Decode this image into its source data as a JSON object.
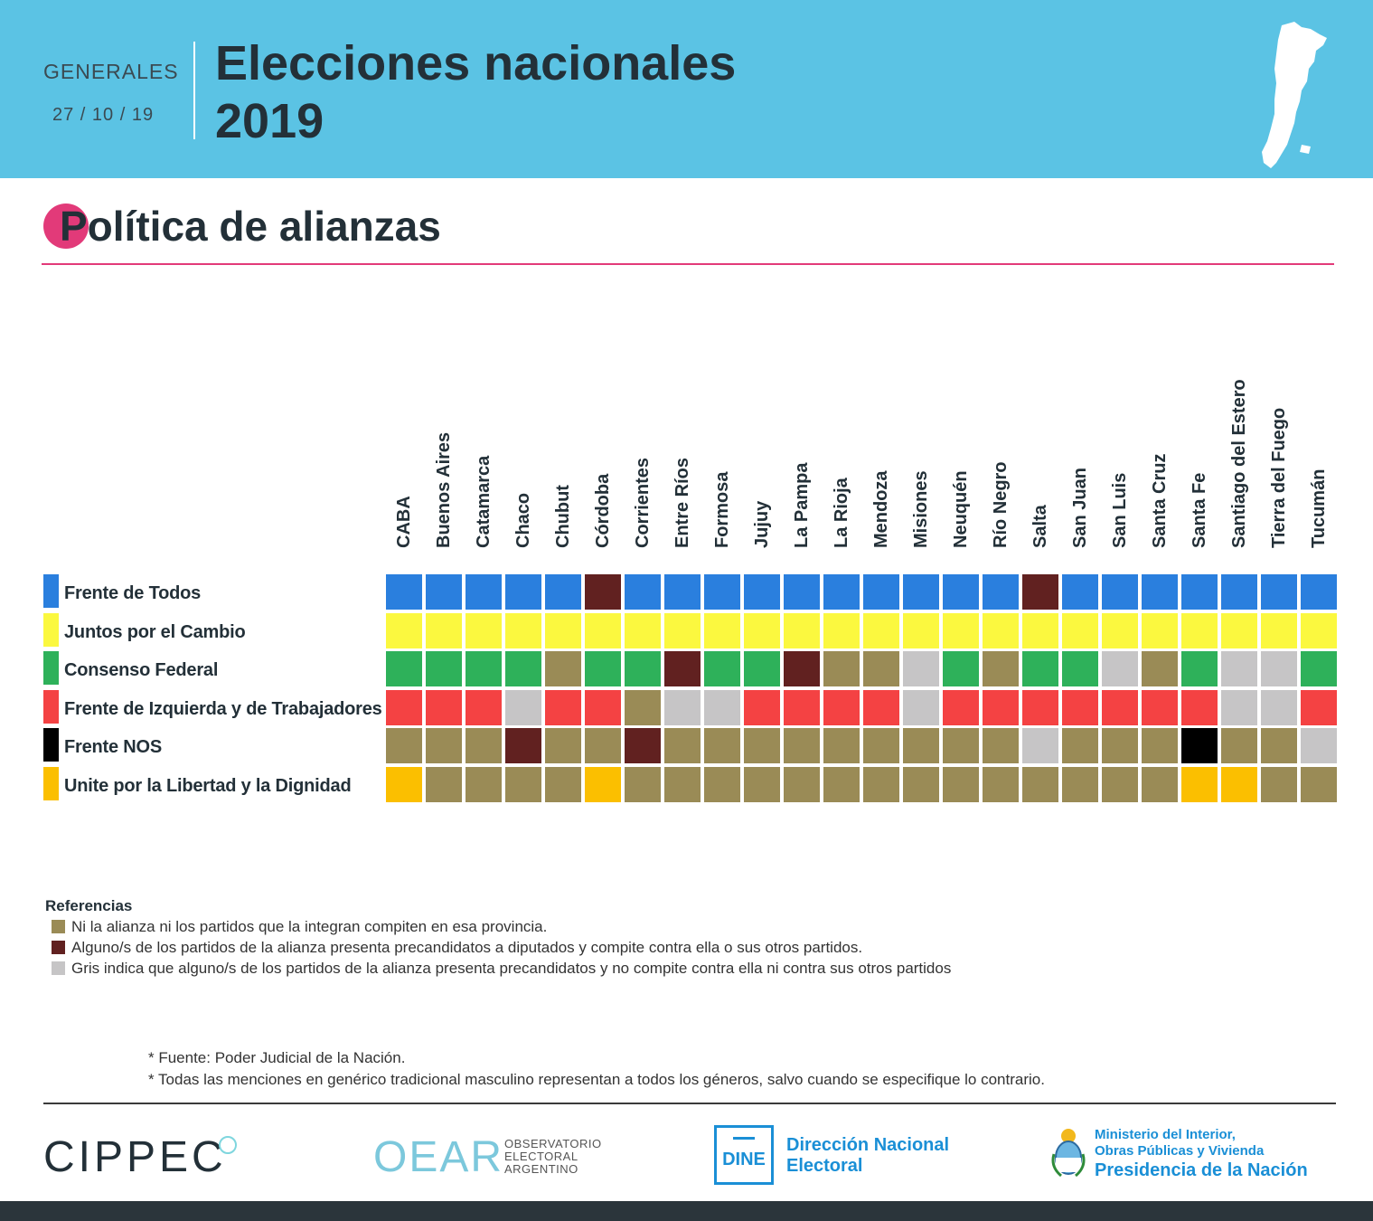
{
  "header": {
    "election_type": "GENERALES",
    "date": "27 / 10 / 19",
    "title_line1": "Elecciones nacionales",
    "title_line2": "2019"
  },
  "section": {
    "title": "Política de alianzas"
  },
  "colors": {
    "header_bg": "#5bc3e4",
    "accent": "#e23a79",
    "A": "#2a7fde",
    "Y": "#fbf83f",
    "G": "#2eb15a",
    "R": "#f44243",
    "K": "#000000",
    "O": "#fbbf00",
    "B": "#9a8b56",
    "D": "#612120",
    "L": "#c6c5c6"
  },
  "chart_data": {
    "type": "table",
    "title": "Política de alianzas",
    "columns": [
      "CABA",
      "Buenos Aires",
      "Catamarca",
      "Chaco",
      "Chubut",
      "Córdoba",
      "Corrientes",
      "Entre Ríos",
      "Formosa",
      "Jujuy",
      "La Pampa",
      "La Rioja",
      "Mendoza",
      "Misiones",
      "Neuquén",
      "Río Negro",
      "Salta",
      "San Juan",
      "San Luis",
      "Santa Cruz",
      "Santa Fe",
      "Santiago del Estero",
      "Tierra del Fuego",
      "Tucumán"
    ],
    "rows": [
      {
        "label": "Frente de Todos",
        "key": "A",
        "cells": [
          "A",
          "A",
          "A",
          "A",
          "A",
          "D",
          "A",
          "A",
          "A",
          "A",
          "A",
          "A",
          "A",
          "A",
          "A",
          "A",
          "D",
          "A",
          "A",
          "A",
          "A",
          "A",
          "A",
          "A"
        ]
      },
      {
        "label": "Juntos por el Cambio",
        "key": "Y",
        "cells": [
          "Y",
          "Y",
          "Y",
          "Y",
          "Y",
          "Y",
          "Y",
          "Y",
          "Y",
          "Y",
          "Y",
          "Y",
          "Y",
          "Y",
          "Y",
          "Y",
          "Y",
          "Y",
          "Y",
          "Y",
          "Y",
          "Y",
          "Y",
          "Y"
        ]
      },
      {
        "label": "Consenso Federal",
        "key": "G",
        "cells": [
          "G",
          "G",
          "G",
          "G",
          "B",
          "G",
          "G",
          "D",
          "G",
          "G",
          "D",
          "B",
          "B",
          "L",
          "G",
          "B",
          "G",
          "G",
          "L",
          "B",
          "G",
          "L",
          "L",
          "G"
        ]
      },
      {
        "label": "Frente de Izquierda y de Trabajadores",
        "key": "R",
        "cells": [
          "R",
          "R",
          "R",
          "L",
          "R",
          "R",
          "B",
          "L",
          "L",
          "R",
          "R",
          "R",
          "R",
          "L",
          "R",
          "R",
          "R",
          "R",
          "R",
          "R",
          "R",
          "L",
          "L",
          "R"
        ]
      },
      {
        "label": "Frente NOS",
        "key": "K",
        "cells": [
          "B",
          "B",
          "B",
          "D",
          "B",
          "B",
          "D",
          "B",
          "B",
          "B",
          "B",
          "B",
          "B",
          "B",
          "B",
          "B",
          "L",
          "B",
          "B",
          "B",
          "K",
          "B",
          "B",
          "L"
        ]
      },
      {
        "label": "Unite por la Libertad y la Dignidad",
        "key": "O",
        "cells": [
          "O",
          "B",
          "B",
          "B",
          "B",
          "O",
          "B",
          "B",
          "B",
          "B",
          "B",
          "B",
          "B",
          "B",
          "B",
          "B",
          "B",
          "B",
          "B",
          "B",
          "O",
          "O",
          "B",
          "B"
        ]
      }
    ],
    "legend_title": "Referencias",
    "legend": [
      {
        "key": "B",
        "text": "Ni la alianza ni los partidos que la integran compiten en esa provincia."
      },
      {
        "key": "D",
        "text": "Alguno/s de los partidos de la alianza presenta precandidatos a diputados y compite contra ella o sus otros partidos."
      },
      {
        "key": "L",
        "text": "Gris indica que alguno/s de los partidos de la alianza presenta precandidatos y no compite contra ella ni contra sus otros partidos"
      }
    ]
  },
  "notes": [
    "* Fuente: Poder Judicial de la Nación.",
    "* Todas las menciones en genérico tradicional masculino representan a todos los géneros, salvo cuando se especifique lo contrario."
  ],
  "footer": {
    "cippec": "CIPPEC",
    "oear": "OEAR",
    "oear_sub": [
      "OBSERVATORIO",
      "ELECTORAL",
      "ARGENTINO"
    ],
    "dine": "DINE",
    "dine_name": [
      "Dirección Nacional",
      "Electoral"
    ],
    "ministerio": [
      "Ministerio del Interior,",
      "Obras Públicas y Vivienda"
    ],
    "presidencia": "Presidencia de la Nación"
  }
}
